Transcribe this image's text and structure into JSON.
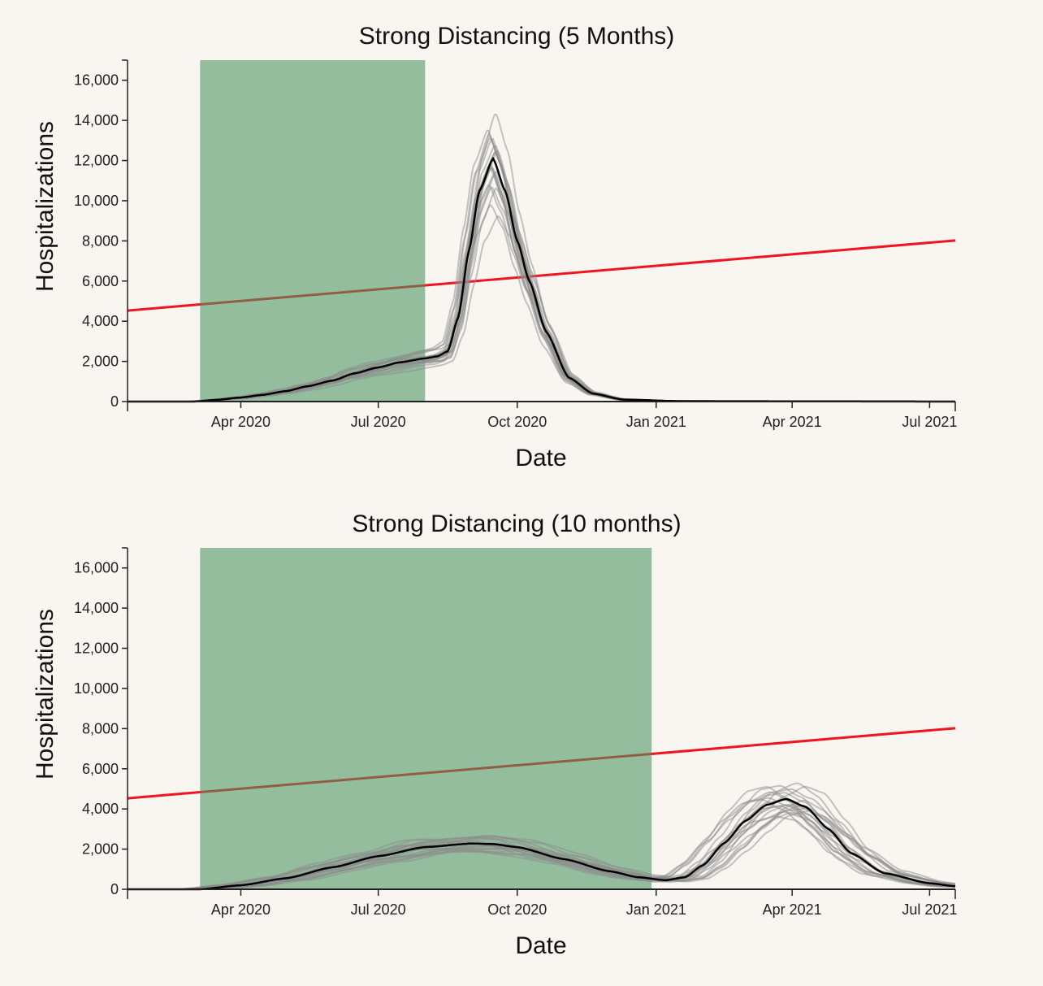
{
  "colors": {
    "background": "#f9f6f1",
    "intervention_band": "#4a9461",
    "capacity_line": "#f0141e",
    "mean_line": "#000000",
    "ensemble_lines": "#8c8c8c"
  },
  "chart_data": [
    {
      "type": "line",
      "title": "Strong Distancing (5 Months)",
      "xlabel": "Date",
      "ylabel": "Hospitalizations",
      "xlim": [
        "2020-01-17",
        "2021-07-18"
      ],
      "ylim": [
        0,
        17000
      ],
      "x_ticks": [
        {
          "date": "2020-04-01",
          "label": "Apr 2020"
        },
        {
          "date": "2020-07-01",
          "label": "Jul 2020"
        },
        {
          "date": "2020-10-01",
          "label": "Oct 2020"
        },
        {
          "date": "2021-01-01",
          "label": "Jan 2021"
        },
        {
          "date": "2021-04-01",
          "label": "Apr 2021"
        },
        {
          "date": "2021-07-01",
          "label": "Jul 2021"
        }
      ],
      "y_ticks": [
        {
          "value": 0,
          "label": "0"
        },
        {
          "value": 2000,
          "label": "2,000"
        },
        {
          "value": 4000,
          "label": "4,000"
        },
        {
          "value": 6000,
          "label": "6,000"
        },
        {
          "value": 8000,
          "label": "8,000"
        },
        {
          "value": 10000,
          "label": "10,000"
        },
        {
          "value": 12000,
          "label": "12,000"
        },
        {
          "value": 14000,
          "label": "14,000"
        },
        {
          "value": 16000,
          "label": "16,000"
        }
      ],
      "intervention_period": [
        "2020-03-05",
        "2020-08-01"
      ],
      "capacity_line": {
        "start": [
          "2020-01-17",
          4530
        ],
        "end": [
          "2021-07-18",
          8020
        ]
      },
      "mean_series": {
        "dates": [
          "2020-01-17",
          "2020-03-01",
          "2020-03-15",
          "2020-04-01",
          "2020-04-15",
          "2020-05-01",
          "2020-05-15",
          "2020-06-01",
          "2020-06-15",
          "2020-07-01",
          "2020-07-15",
          "2020-08-01",
          "2020-08-09",
          "2020-08-16",
          "2020-08-23",
          "2020-08-30",
          "2020-09-06",
          "2020-09-15",
          "2020-09-23",
          "2020-10-01",
          "2020-10-09",
          "2020-10-20",
          "2020-11-04",
          "2020-11-20",
          "2020-12-10",
          "2021-01-15",
          "2021-07-18"
        ],
        "values": [
          0,
          0,
          80,
          200,
          330,
          520,
          760,
          1050,
          1400,
          1700,
          1950,
          2150,
          2250,
          2500,
          4200,
          7500,
          10500,
          12100,
          10500,
          8000,
          6000,
          3500,
          1200,
          400,
          100,
          20,
          0
        ]
      },
      "ensemble_range_at_peak": [
        9500,
        14400
      ]
    },
    {
      "type": "line",
      "title": "Strong Distancing (10 months)",
      "xlabel": "Date",
      "ylabel": "Hospitalizations",
      "xlim": [
        "2020-01-17",
        "2021-07-18"
      ],
      "ylim": [
        0,
        17000
      ],
      "x_ticks": [
        {
          "date": "2020-04-01",
          "label": "Apr 2020"
        },
        {
          "date": "2020-07-01",
          "label": "Jul 2020"
        },
        {
          "date": "2020-10-01",
          "label": "Oct 2020"
        },
        {
          "date": "2021-01-01",
          "label": "Jan 2021"
        },
        {
          "date": "2021-04-01",
          "label": "Apr 2021"
        },
        {
          "date": "2021-07-01",
          "label": "Jul 2021"
        }
      ],
      "y_ticks": [
        {
          "value": 0,
          "label": "0"
        },
        {
          "value": 2000,
          "label": "2,000"
        },
        {
          "value": 4000,
          "label": "4,000"
        },
        {
          "value": 6000,
          "label": "6,000"
        },
        {
          "value": 8000,
          "label": "8,000"
        },
        {
          "value": 10000,
          "label": "10,000"
        },
        {
          "value": 12000,
          "label": "12,000"
        },
        {
          "value": 14000,
          "label": "14,000"
        },
        {
          "value": 16000,
          "label": "16,000"
        }
      ],
      "intervention_period": [
        "2020-03-05",
        "2020-12-29"
      ],
      "capacity_line": {
        "start": [
          "2020-01-17",
          4530
        ],
        "end": [
          "2021-07-18",
          8020
        ]
      },
      "mean_series": {
        "dates": [
          "2020-01-17",
          "2020-03-05",
          "2020-04-01",
          "2020-05-01",
          "2020-06-01",
          "2020-07-01",
          "2020-08-01",
          "2020-09-01",
          "2020-09-15",
          "2020-10-01",
          "2020-11-01",
          "2020-12-01",
          "2020-12-20",
          "2021-01-07",
          "2021-01-20",
          "2021-02-01",
          "2021-02-15",
          "2021-03-01",
          "2021-03-15",
          "2021-03-28",
          "2021-04-10",
          "2021-04-25",
          "2021-05-10",
          "2021-06-01",
          "2021-07-01",
          "2021-07-18"
        ],
        "values": [
          0,
          0,
          200,
          550,
          1100,
          1650,
          2100,
          2280,
          2250,
          2100,
          1500,
          900,
          600,
          450,
          600,
          1200,
          2300,
          3400,
          4200,
          4500,
          4100,
          3000,
          1800,
          800,
          300,
          150
        ]
      },
      "ensemble_range_at_peak": [
        3700,
        5300
      ]
    }
  ]
}
